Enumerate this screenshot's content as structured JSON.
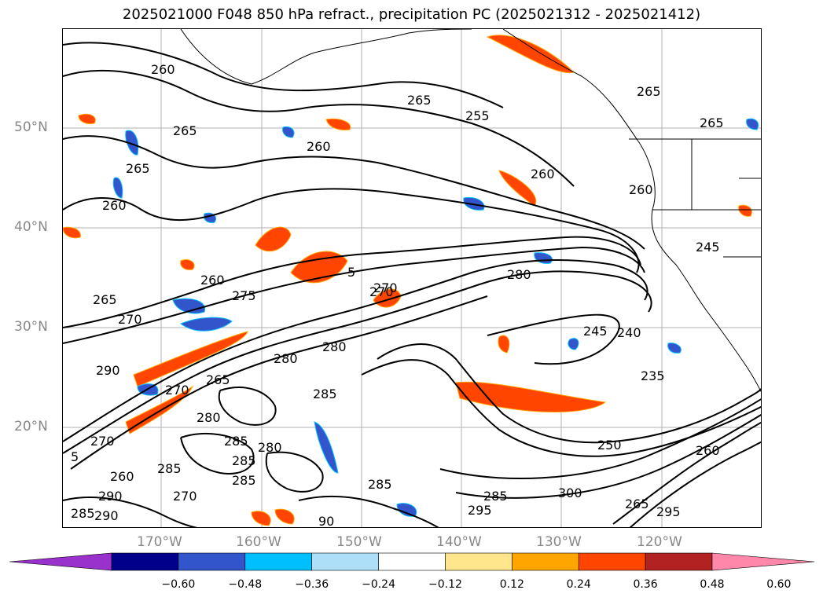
{
  "title": "2025021000 F048 850 hPa refract., precipitation PC (2025021312 - 2025021412)",
  "lat_labels": [
    "50°N",
    "40°N",
    "30°N",
    "20°N"
  ],
  "lon_labels": [
    "170°W",
    "160°W",
    "150°W",
    "140°W",
    "130°W",
    "120°W"
  ],
  "colorbar": {
    "ticks": [
      "−0.60",
      "−0.48",
      "−0.36",
      "−0.24",
      "−0.12",
      "0.12",
      "0.24",
      "0.36",
      "0.48",
      "0.60"
    ],
    "colors": [
      "#9932CC",
      "#00008B",
      "#3355CC",
      "#00BFFF",
      "#ADE0F8",
      "#FFFFFF",
      "#FFE68C",
      "#FFA500",
      "#FF4500",
      "#B22222",
      "#FF88AA"
    ]
  },
  "contour_labels": [
    "260",
    "265",
    "265",
    "260",
    "265",
    "265",
    "255",
    "260",
    "260",
    "265",
    "260",
    "280",
    "245",
    "265",
    "260",
    "270",
    "275",
    "270",
    "5",
    "270",
    "280",
    "240",
    "245",
    "290",
    "280",
    "265",
    "270",
    "285",
    "235",
    "280",
    "280",
    "260",
    "285",
    "270",
    "285",
    "285",
    "250",
    "260",
    "285",
    "285",
    "300",
    "295",
    "295",
    "290",
    "290",
    "265",
    "285",
    "270",
    "285",
    "90",
    "5"
  ]
}
